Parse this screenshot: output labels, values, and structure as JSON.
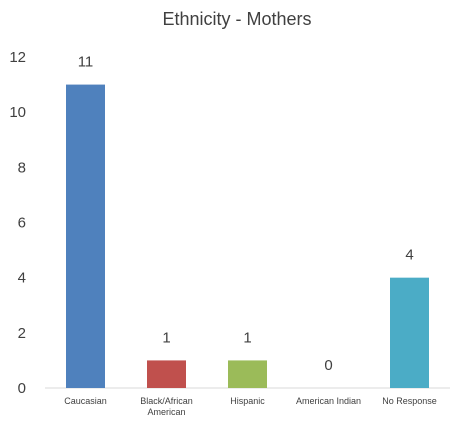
{
  "chart_data": {
    "type": "bar",
    "title": "Ethnicity - Mothers",
    "categories": [
      [
        "Caucasian"
      ],
      [
        "Black/African",
        "American"
      ],
      [
        "Hispanic"
      ],
      [
        "American Indian"
      ],
      [
        "No Response"
      ]
    ],
    "values": [
      11,
      1,
      1,
      0,
      4
    ],
    "colors": [
      "#4f81bd",
      "#c0504d",
      "#9bbb59",
      "#8064a2",
      "#4bacc6"
    ],
    "xlabel": "",
    "ylabel": "",
    "ylim": [
      0,
      12
    ],
    "yticks": [
      0,
      2,
      4,
      6,
      8,
      10,
      12
    ],
    "grid": false,
    "legend": "none",
    "data_labels": true
  }
}
